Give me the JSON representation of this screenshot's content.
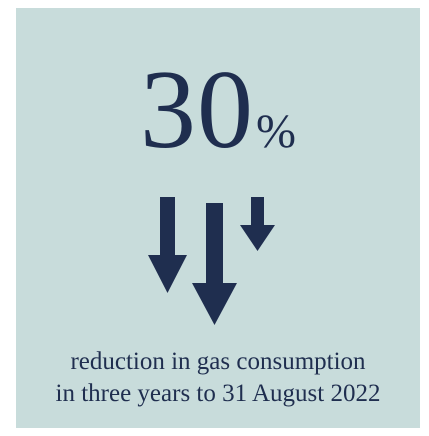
{
  "stat": {
    "value": "30",
    "unit": "%"
  },
  "caption": {
    "line1": "reduction in gas consumption",
    "line2": "in three years to 31 August 2022"
  },
  "colors": {
    "background": "#c8dcdb",
    "text": "#1f2e4f",
    "arrows": "#1f2e4f"
  },
  "icons": {
    "arrows": "three-down-arrows-icon"
  }
}
